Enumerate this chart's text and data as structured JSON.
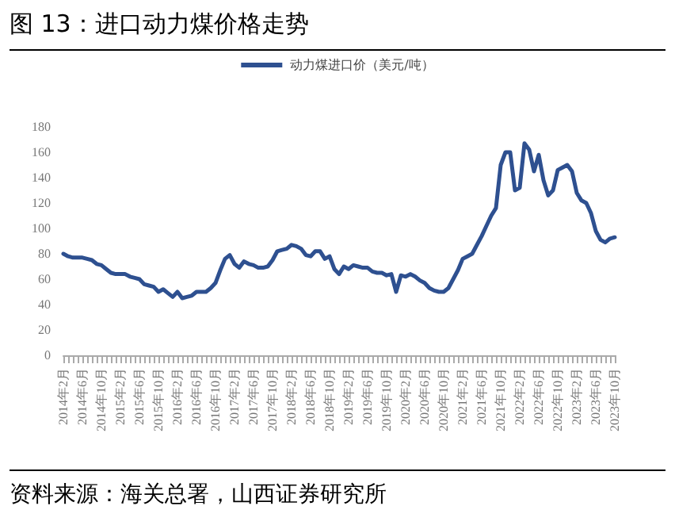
{
  "chart_data": {
    "type": "line",
    "title": "图 13：进口动力煤价格走势",
    "annotations": [
      "资料来源：海关总署，山西证券研究所"
    ],
    "categories": [
      "2014年2月",
      null,
      null,
      null,
      "2014年6月",
      null,
      null,
      null,
      "2014年10月",
      null,
      null,
      null,
      "2015年2月",
      null,
      null,
      null,
      "2015年6月",
      null,
      null,
      null,
      "2015年10月",
      null,
      null,
      null,
      "2016年2月",
      null,
      null,
      null,
      "2016年6月",
      null,
      null,
      null,
      "2016年10月",
      null,
      null,
      null,
      "2017年2月",
      null,
      null,
      null,
      "2017年6月",
      null,
      null,
      null,
      "2017年10月",
      null,
      null,
      null,
      "2018年2月",
      null,
      null,
      null,
      "2018年6月",
      null,
      null,
      null,
      "2018年10月",
      null,
      null,
      null,
      "2019年2月",
      null,
      null,
      null,
      "2019年6月",
      null,
      null,
      null,
      "2019年10月",
      null,
      null,
      null,
      "2020年2月",
      null,
      null,
      null,
      "2020年6月",
      null,
      null,
      null,
      "2020年10月",
      null,
      null,
      null,
      "2021年2月",
      null,
      null,
      null,
      "2021年6月",
      null,
      null,
      null,
      "2021年10月",
      null,
      null,
      null,
      "2022年2月",
      null,
      null,
      null,
      "2022年6月",
      null,
      null,
      null,
      "2022年10月",
      null,
      null,
      null,
      "2023年2月",
      null,
      null,
      null,
      "2023年6月",
      null,
      null,
      null,
      "2023年10月"
    ],
    "series": [
      {
        "name": "动力煤进口价（美元/吨）",
        "color": "#2e5090",
        "values": [
          80,
          78,
          77,
          77,
          77,
          76,
          75,
          72,
          71,
          68,
          65,
          64,
          64,
          64,
          62,
          61,
          60,
          56,
          55,
          54,
          50,
          52,
          49,
          46,
          50,
          45,
          46,
          47,
          50,
          50,
          50,
          53,
          57,
          67,
          76,
          79,
          72,
          69,
          74,
          72,
          71,
          69,
          69,
          70,
          75,
          82,
          83,
          84,
          87,
          86,
          84,
          79,
          78,
          82,
          82,
          76,
          78,
          68,
          64,
          70,
          68,
          71,
          70,
          69,
          69,
          66,
          65,
          65,
          63,
          64,
          50,
          63,
          62,
          64,
          62,
          59,
          57,
          53,
          51,
          50,
          50,
          53,
          60,
          67,
          76,
          78,
          80,
          87,
          94,
          102,
          110,
          116,
          150,
          160,
          160,
          130,
          132,
          167,
          162,
          145,
          158,
          138,
          126,
          130,
          146,
          148,
          150,
          145,
          128,
          122,
          120,
          112,
          98,
          91,
          89,
          92,
          93
        ]
      }
    ],
    "ylim": [
      0,
      180
    ],
    "yticks": [
      0,
      20,
      40,
      60,
      80,
      100,
      120,
      140,
      160,
      180
    ],
    "grid": false,
    "legend": "top",
    "marker": "none",
    "line_style": "solid"
  }
}
